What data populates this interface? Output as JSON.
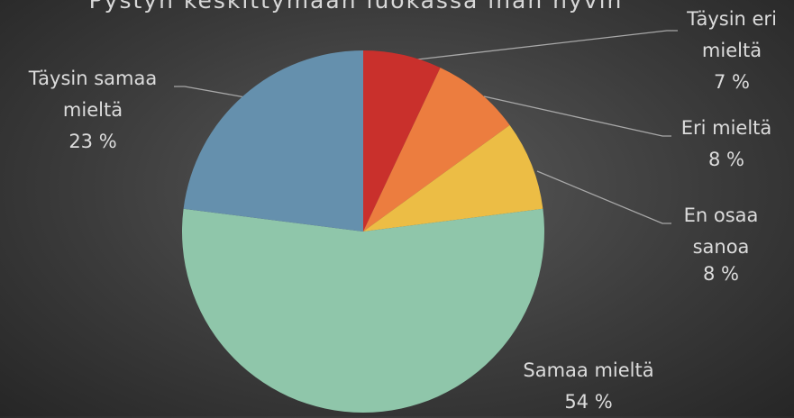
{
  "chart_data": {
    "type": "pie",
    "title": "Pystyn keskittymään luokassa ihan hyvin",
    "categories": [
      "Täysin eri mieltä",
      "Eri mieltä",
      "En osaa sanoa",
      "Samaa mieltä",
      "Täysin samaa mieltä"
    ],
    "values": [
      7,
      8,
      8,
      54,
      23
    ],
    "value_labels": [
      "7 %",
      "8 %",
      "8 %",
      "54 %",
      "23 %"
    ],
    "colors": [
      "#c9302c",
      "#ec7d3f",
      "#ecbd45",
      "#8fc6aa",
      "#6590ad"
    ]
  }
}
